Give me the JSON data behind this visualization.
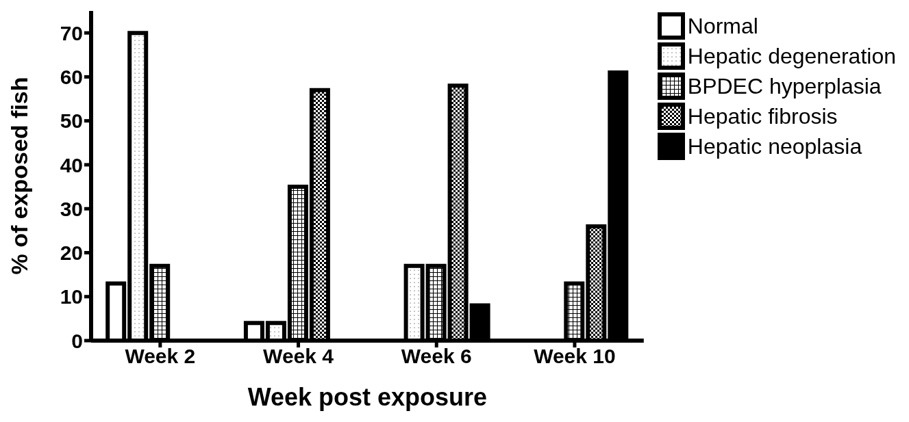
{
  "chart_data": {
    "type": "bar",
    "xlabel": "Week post exposure",
    "ylabel": "% of exposed fish",
    "categories": [
      "Week 2",
      "Week 4",
      "Week 6",
      "Week 10"
    ],
    "series": [
      {
        "name": "Normal",
        "color": "#000000",
        "values": [
          13,
          4,
          0,
          0
        ]
      },
      {
        "name": "Hepatic degeneration",
        "color": "#000000",
        "values": [
          70,
          4,
          17,
          0
        ]
      },
      {
        "name": "BPDEC hyperplasia",
        "color": "#000000",
        "values": [
          17,
          35,
          17,
          13
        ]
      },
      {
        "name": "Hepatic fibrosis",
        "color": "#000000",
        "values": [
          0,
          57,
          58,
          26
        ]
      },
      {
        "name": "Hepatic neoplasia",
        "color": "#000000",
        "values": [
          0,
          0,
          8,
          61
        ]
      }
    ],
    "ylim": [
      0,
      75
    ],
    "yticks": [
      0,
      10,
      20,
      30,
      40,
      50,
      60,
      70
    ],
    "grid": false,
    "legend": "top right"
  }
}
